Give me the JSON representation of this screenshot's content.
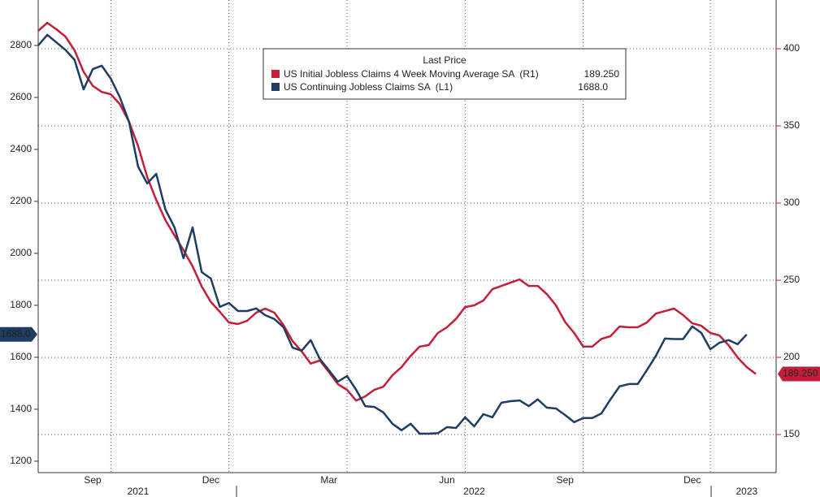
{
  "chart_data": {
    "type": "line",
    "legend_title": "Last Price",
    "categories": [
      null,
      null,
      null,
      null,
      null,
      null,
      "Sep",
      null,
      null,
      null,
      null,
      null,
      null,
      null,
      null,
      null,
      null,
      null,
      null,
      "Dec",
      null,
      null,
      null,
      null,
      null,
      null,
      null,
      null,
      null,
      null,
      null,
      null,
      "Mar",
      null,
      null,
      null,
      null,
      null,
      null,
      null,
      null,
      null,
      null,
      null,
      null,
      "Jun",
      null,
      null,
      null,
      null,
      null,
      null,
      null,
      null,
      null,
      null,
      null,
      null,
      "Sep",
      null,
      null,
      null,
      null,
      null,
      null,
      null,
      null,
      null,
      null,
      null,
      null,
      null,
      "Dec",
      null,
      null,
      null,
      null,
      null,
      null,
      null
    ],
    "year_categories": [
      null,
      null,
      null,
      null,
      null,
      null,
      null,
      null,
      null,
      null,
      null,
      "2021",
      null,
      null,
      null,
      null,
      null,
      null,
      null,
      null,
      null,
      null,
      null,
      null,
      null,
      null,
      null,
      null,
      null,
      null,
      null,
      null,
      null,
      null,
      null,
      null,
      null,
      null,
      null,
      null,
      null,
      null,
      null,
      null,
      null,
      null,
      null,
      null,
      "2022",
      null,
      null,
      null,
      null,
      null,
      null,
      null,
      null,
      null,
      null,
      null,
      null,
      null,
      null,
      null,
      null,
      null,
      null,
      null,
      null,
      null,
      null,
      null,
      null,
      null,
      null,
      null,
      null,
      null,
      "2023",
      null
    ],
    "series": [
      {
        "name": "US Initial Jobless Claims 4 Week Moving Average SA  (R1)",
        "color": "#c41e3a",
        "axis": "y2",
        "values": [
          411.6,
          416.8,
          412.6,
          407.9,
          399,
          385,
          376,
          372,
          370.5,
          364,
          352.6,
          337,
          317,
          302,
          289,
          279,
          269.5,
          259,
          246,
          236,
          229.5,
          222.6,
          221.6,
          223.7,
          229,
          231.6,
          229,
          221,
          210.5,
          204,
          196,
          198,
          190.5,
          182.6,
          179,
          172,
          174.7,
          179,
          181,
          188.4,
          193.7,
          201,
          207,
          208,
          215.8,
          219.5,
          225,
          232.6,
          233.7,
          236.8,
          244.2,
          246.3,
          248.4,
          250.5,
          246.3,
          246.3,
          241,
          233.7,
          223,
          215.8,
          207,
          207,
          212,
          213.7,
          220,
          219.5,
          219.5,
          222.6,
          228.4,
          230,
          231.6,
          227.4,
          222.1,
          220.5,
          215.8,
          214.2,
          207.9,
          200,
          193.7,
          189.25
        ],
        "value_labels": [
          null,
          null,
          null,
          null,
          null,
          null,
          null,
          null,
          null,
          null,
          null,
          null,
          null,
          null,
          null,
          null,
          null,
          null,
          null,
          null,
          null,
          null,
          null,
          null,
          null,
          null,
          null,
          null,
          null,
          null,
          null,
          null,
          null,
          null,
          null,
          null,
          null,
          null,
          null,
          null,
          null,
          null,
          null,
          null,
          null,
          null,
          null,
          null,
          null,
          null,
          null,
          null,
          null,
          null,
          null,
          null,
          null,
          null,
          null,
          null,
          null,
          null,
          null,
          null,
          null,
          null,
          null,
          null,
          null,
          null,
          null,
          null,
          null,
          null,
          null,
          null,
          null,
          null,
          null,
          "189.250"
        ]
      },
      {
        "name": "US Continuing Jobless Claims SA  (L1)",
        "color": "#1f3d63",
        "axis": "y",
        "values": [
          2800,
          2841,
          2812,
          2783,
          2745,
          2631,
          2709,
          2722,
          2672,
          2600,
          2506,
          2334,
          2269,
          2306,
          2169,
          2100,
          1981,
          2100,
          1928,
          1903,
          1794,
          1809,
          1778,
          1778,
          1788,
          1762,
          1747,
          1716,
          1637,
          1625,
          1666,
          1594,
          1550,
          1506,
          1528,
          1475,
          1412,
          1409,
          1388,
          1344,
          1319,
          1344,
          1306,
          1306,
          1308,
          1331,
          1328,
          1369,
          1334,
          1381,
          1369,
          1425,
          1431,
          1434,
          1412,
          1438,
          1406,
          1403,
          1378,
          1350,
          1366,
          1366,
          1384,
          1438,
          1488,
          1497,
          1497,
          1550,
          1606,
          1672,
          1670,
          1670,
          1719,
          1694,
          1631,
          1656,
          1666,
          1650,
          1688,
          null
        ],
        "value_labels": [
          null,
          null,
          null,
          null,
          null,
          null,
          null,
          null,
          null,
          null,
          null,
          null,
          null,
          null,
          null,
          null,
          null,
          null,
          null,
          null,
          null,
          null,
          null,
          null,
          null,
          null,
          null,
          null,
          null,
          null,
          null,
          null,
          null,
          null,
          null,
          null,
          null,
          null,
          null,
          null,
          null,
          null,
          null,
          null,
          null,
          null,
          null,
          null,
          null,
          null,
          null,
          null,
          null,
          null,
          null,
          null,
          null,
          null,
          null,
          null,
          null,
          null,
          null,
          null,
          null,
          null,
          null,
          null,
          null,
          null,
          null,
          null,
          null,
          null,
          null,
          null,
          null,
          null,
          "1688.0",
          null
        ]
      }
    ],
    "ylim": [
      1156,
      2975
    ],
    "yticks": [
      1200,
      1400,
      1600,
      1800,
      2000,
      2200,
      2400,
      2600,
      2800
    ],
    "y2lim": [
      125.3,
      431.6
    ],
    "y2ticks": [
      150,
      200,
      250,
      300,
      350,
      400
    ],
    "grid": true
  }
}
